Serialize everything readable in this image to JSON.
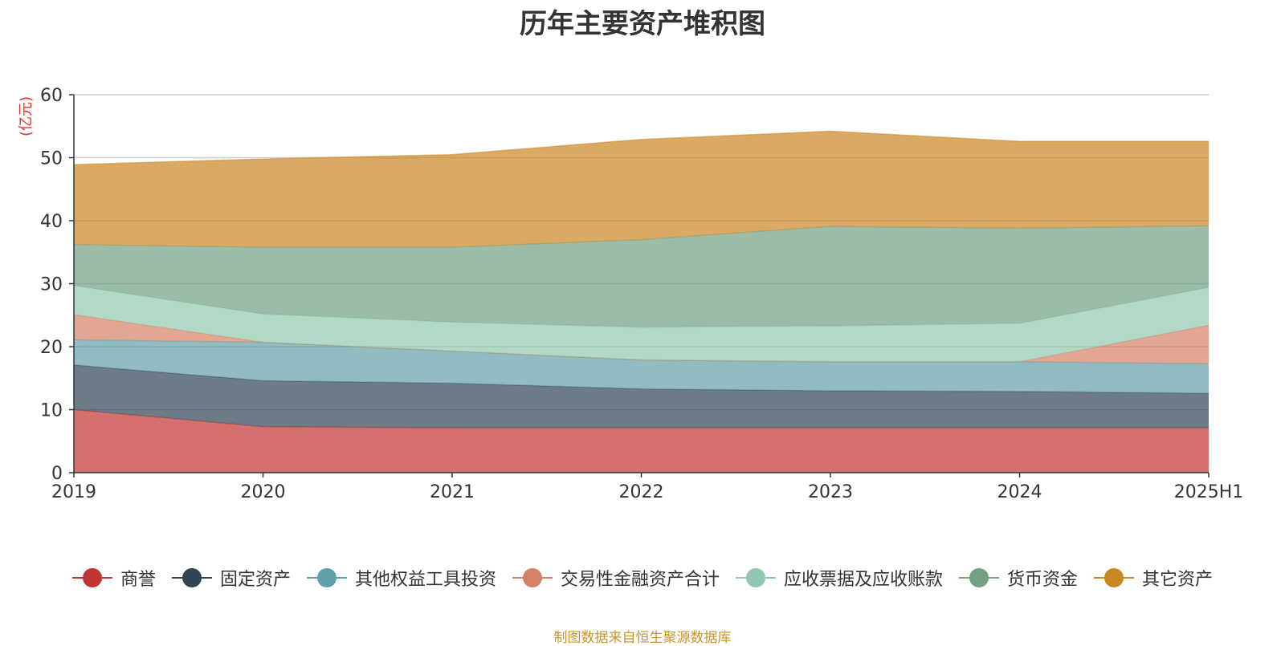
{
  "chart_data": {
    "type": "area",
    "stacked": true,
    "title": "历年主要资产堆积图",
    "unit_label": "(亿元)",
    "source_note": "制图数据来自恒生聚源数据库",
    "categories": [
      "2019",
      "2020",
      "2021",
      "2022",
      "2023",
      "2024",
      "2025H1"
    ],
    "ylim": [
      0,
      60
    ],
    "yticks": [
      0,
      10,
      20,
      30,
      40,
      50,
      60
    ],
    "grid": true,
    "legend_position": "bottom",
    "series": [
      {
        "name": "商誉",
        "color": "#c23531",
        "values": [
          10.0,
          7.3,
          7.1,
          7.1,
          7.1,
          7.1,
          7.1
        ]
      },
      {
        "name": "固定资产",
        "color": "#2f4554",
        "values": [
          7.1,
          7.3,
          7.1,
          6.2,
          5.9,
          5.8,
          5.5
        ]
      },
      {
        "name": "其他权益工具投资",
        "color": "#61a0a8",
        "values": [
          4.0,
          6.1,
          5.1,
          4.6,
          4.6,
          4.7,
          4.7
        ]
      },
      {
        "name": "交易性金融资产合计",
        "color": "#d48265",
        "values": [
          4.0,
          0.0,
          0.0,
          0.0,
          0.0,
          0.0,
          6.1
        ]
      },
      {
        "name": "应收票据及应收账款",
        "color": "#91c7ae",
        "values": [
          4.6,
          4.5,
          4.6,
          5.2,
          5.7,
          6.1,
          6.0
        ]
      },
      {
        "name": "货币资金",
        "color": "#749f83",
        "values": [
          6.5,
          10.6,
          11.9,
          13.9,
          15.8,
          15.1,
          9.8
        ]
      },
      {
        "name": "其它资产",
        "color": "#ca8622",
        "values": [
          12.7,
          14.0,
          14.7,
          15.9,
          15.1,
          13.8,
          13.4
        ]
      }
    ]
  }
}
